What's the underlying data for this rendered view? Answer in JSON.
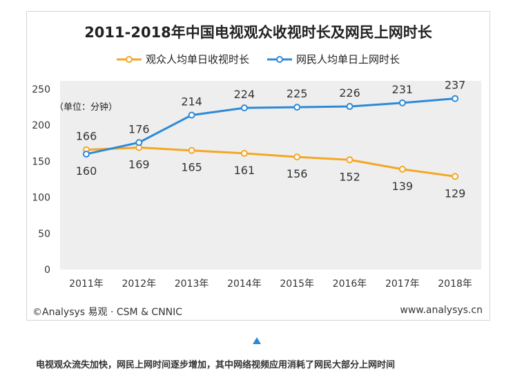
{
  "chart_data": {
    "type": "line",
    "title": "2011-2018年中国电视观众收视时长及网民上网时长",
    "unit_note": "（单位：分钟）",
    "categories": [
      "2011年",
      "2012年",
      "2013年",
      "2014年",
      "2015年",
      "2016年",
      "2017年",
      "2018年"
    ],
    "series": [
      {
        "name": "观众人均单日收视时长",
        "color": "#f5a623",
        "values": [
          166,
          169,
          165,
          161,
          156,
          152,
          139,
          129
        ]
      },
      {
        "name": "网民人均单日上网时长",
        "color": "#2b8ad8",
        "values": [
          160,
          176,
          214,
          224,
          225,
          226,
          231,
          237
        ]
      }
    ],
    "yticks": [
      0,
      50,
      100,
      150,
      200,
      250
    ],
    "ylim": [
      0,
      250
    ],
    "grid": false,
    "background": "#eeeeee",
    "legend_position": "top"
  },
  "footer": {
    "source_left": "©Analysys 易观 · CSM & CNNIC",
    "source_right": "www.analysys.cn"
  },
  "caption": "电视观众流失加快，网民上网时间逐步增加，其中网络视频应用消耗了网民大部分上网时间"
}
